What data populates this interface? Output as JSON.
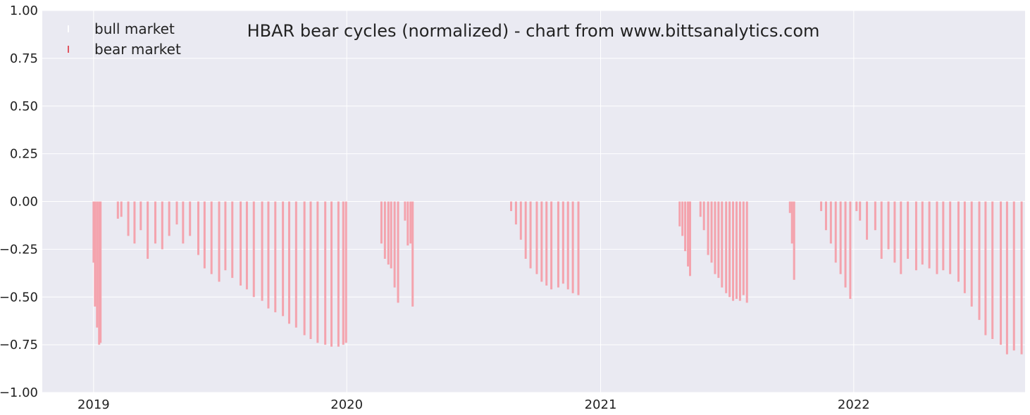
{
  "chart_data": {
    "type": "bar",
    "title": "HBAR bear cycles (normalized)  - chart from www.bittsanalytics.com",
    "xlabel": "",
    "ylabel": "",
    "ylim": [
      -1.0,
      1.0
    ],
    "xlim": [
      "2018-10-19",
      "2022-09-05"
    ],
    "yticks": [
      "1.00",
      "0.75",
      "0.50",
      "0.25",
      "0.00",
      "−0.25",
      "−0.50",
      "−0.75",
      "−1.00"
    ],
    "xticks": [
      "2019",
      "2020",
      "2021",
      "2022"
    ],
    "grid": true,
    "legend": {
      "placement": "top-left",
      "entries": [
        "bull market",
        "bear market"
      ]
    },
    "colors": {
      "background": "#eaeaf2",
      "grid": "#ffffff",
      "bull": "#ffffff",
      "bear": "#f4a3ad",
      "bear_legend": "#e05560"
    },
    "series": [
      {
        "name": "bear market",
        "type": "drawdown",
        "x": [
          "2019-01-01",
          "2019-01-03",
          "2019-01-06",
          "2019-01-09",
          "2019-01-11",
          "2019-02-05",
          "2019-02-10",
          "2019-02-20",
          "2019-03-01",
          "2019-03-10",
          "2019-03-20",
          "2019-03-31",
          "2019-04-10",
          "2019-04-20",
          "2019-05-01",
          "2019-05-10",
          "2019-05-20",
          "2019-06-01",
          "2019-06-10",
          "2019-06-20",
          "2019-07-01",
          "2019-07-10",
          "2019-07-20",
          "2019-08-01",
          "2019-08-10",
          "2019-08-20",
          "2019-09-01",
          "2019-09-10",
          "2019-09-20",
          "2019-10-01",
          "2019-10-10",
          "2019-10-20",
          "2019-11-01",
          "2019-11-10",
          "2019-11-20",
          "2019-12-01",
          "2019-12-10",
          "2019-12-20",
          "2019-12-27",
          "2019-12-31",
          "2020-02-20",
          "2020-02-25",
          "2020-03-01",
          "2020-03-05",
          "2020-03-10",
          "2020-03-15",
          "2020-03-25",
          "2020-03-29",
          "2020-04-02",
          "2020-04-05",
          "2020-08-25",
          "2020-09-01",
          "2020-09-08",
          "2020-09-15",
          "2020-09-22",
          "2020-10-01",
          "2020-10-08",
          "2020-10-15",
          "2020-10-22",
          "2020-11-01",
          "2020-11-08",
          "2020-11-15",
          "2020-11-22",
          "2020-11-30",
          "2021-04-25",
          "2021-04-29",
          "2021-05-03",
          "2021-05-07",
          "2021-05-10",
          "2021-05-25",
          "2021-05-30",
          "2021-06-05",
          "2021-06-10",
          "2021-06-15",
          "2021-06-20",
          "2021-06-25",
          "2021-07-01",
          "2021-07-06",
          "2021-07-11",
          "2021-07-16",
          "2021-07-21",
          "2021-07-26",
          "2021-07-31",
          "2021-10-01",
          "2021-10-04",
          "2021-10-07",
          "2021-11-15",
          "2021-11-22",
          "2021-11-29",
          "2021-12-06",
          "2021-12-13",
          "2021-12-20",
          "2021-12-27",
          "2022-01-05",
          "2022-01-10",
          "2022-01-20",
          "2022-02-01",
          "2022-02-10",
          "2022-02-20",
          "2022-03-01",
          "2022-03-10",
          "2022-03-20",
          "2022-04-01",
          "2022-04-10",
          "2022-04-20",
          "2022-05-01",
          "2022-05-10",
          "2022-05-20",
          "2022-06-01",
          "2022-06-10",
          "2022-06-20",
          "2022-07-01",
          "2022-07-10",
          "2022-07-20",
          "2022-08-01",
          "2022-08-10",
          "2022-08-20",
          "2022-08-31"
        ],
        "values": [
          -0.32,
          -0.55,
          -0.66,
          -0.75,
          -0.74,
          -0.09,
          -0.08,
          -0.18,
          -0.22,
          -0.15,
          -0.3,
          -0.22,
          -0.25,
          -0.18,
          -0.12,
          -0.22,
          -0.18,
          -0.28,
          -0.35,
          -0.38,
          -0.42,
          -0.36,
          -0.4,
          -0.44,
          -0.46,
          -0.5,
          -0.52,
          -0.56,
          -0.58,
          -0.6,
          -0.64,
          -0.66,
          -0.7,
          -0.72,
          -0.74,
          -0.75,
          -0.76,
          -0.76,
          -0.75,
          -0.74,
          -0.22,
          -0.3,
          -0.33,
          -0.35,
          -0.45,
          -0.53,
          -0.1,
          -0.23,
          -0.22,
          -0.55,
          -0.05,
          -0.12,
          -0.2,
          -0.3,
          -0.35,
          -0.38,
          -0.42,
          -0.44,
          -0.46,
          -0.45,
          -0.43,
          -0.46,
          -0.48,
          -0.49,
          -0.13,
          -0.18,
          -0.26,
          -0.34,
          -0.39,
          -0.08,
          -0.15,
          -0.28,
          -0.32,
          -0.38,
          -0.4,
          -0.45,
          -0.48,
          -0.5,
          -0.52,
          -0.51,
          -0.52,
          -0.49,
          -0.53,
          -0.06,
          -0.22,
          -0.41,
          -0.05,
          -0.15,
          -0.22,
          -0.32,
          -0.38,
          -0.45,
          -0.51,
          -0.05,
          -0.1,
          -0.2,
          -0.15,
          -0.3,
          -0.25,
          -0.32,
          -0.38,
          -0.3,
          -0.36,
          -0.33,
          -0.35,
          -0.38,
          -0.36,
          -0.38,
          -0.42,
          -0.48,
          -0.55,
          -0.62,
          -0.7,
          -0.72,
          -0.75,
          -0.8,
          -0.78,
          -0.8
        ]
      }
    ]
  }
}
